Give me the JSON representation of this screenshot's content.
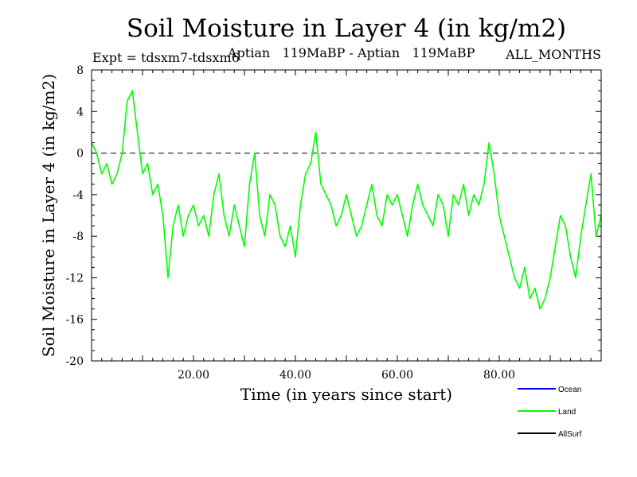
{
  "chart_data": {
    "type": "line",
    "title": "Soil Moisture in Layer 4 (in kg/m2)",
    "subtitle_left": "Expt = tdsxm7-tdsxm6",
    "subtitle_mid": "Aptian   119MaBP - Aptian   119MaBP",
    "subtitle_right": "ALL_MONTHS",
    "xlabel": "Time (in years since start)",
    "ylabel": "Soil Moisture in Layer 4 (in kg/m2)",
    "xlim": [
      0,
      100
    ],
    "ylim": [
      -20,
      8
    ],
    "x_ticks": [
      20,
      40,
      60,
      80
    ],
    "x_tick_labels": [
      "20.00",
      "40.00",
      "60.00",
      "80.00"
    ],
    "y_ticks": [
      8,
      4,
      0,
      -4,
      -8,
      -12,
      -16,
      -20
    ],
    "y_tick_labels": [
      "8",
      "4",
      "0",
      "-4",
      "-8",
      "-12",
      "-16",
      "-20"
    ],
    "reference_line": 0,
    "legend": [
      {
        "name": "Ocean",
        "color": "#0000ff"
      },
      {
        "name": "Land",
        "color": "#00ff00"
      },
      {
        "name": "AllSurf",
        "color": "#000000"
      }
    ],
    "series": [
      {
        "name": "Land",
        "color": "#00ff00",
        "x": [
          0,
          1,
          2,
          3,
          4,
          5,
          6,
          7,
          8,
          9,
          10,
          11,
          12,
          13,
          14,
          15,
          16,
          17,
          18,
          19,
          20,
          21,
          22,
          23,
          24,
          25,
          26,
          27,
          28,
          29,
          30,
          31,
          32,
          33,
          34,
          35,
          36,
          37,
          38,
          39,
          40,
          41,
          42,
          43,
          44,
          45,
          46,
          47,
          48,
          49,
          50,
          51,
          52,
          53,
          54,
          55,
          56,
          57,
          58,
          59,
          60,
          61,
          62,
          63,
          64,
          65,
          66,
          67,
          68,
          69,
          70,
          71,
          72,
          73,
          74,
          75,
          76,
          77,
          78,
          79,
          80,
          81,
          82,
          83,
          84,
          85,
          86,
          87,
          88,
          89,
          90,
          91,
          92,
          93,
          94,
          95,
          96,
          97,
          98,
          99,
          100
        ],
        "values": [
          1,
          0,
          -2,
          -1,
          -3,
          -2,
          0,
          5,
          6,
          2,
          -2,
          -1,
          -4,
          -3,
          -6,
          -12,
          -7,
          -5,
          -8,
          -6,
          -5,
          -7,
          -6,
          -8,
          -4,
          -2,
          -6,
          -8,
          -5,
          -7,
          -9,
          -3,
          0,
          -6,
          -8,
          -4,
          -5,
          -8,
          -9,
          -7,
          -10,
          -5,
          -2,
          -1,
          2,
          -3,
          -4,
          -5,
          -7,
          -6,
          -4,
          -6,
          -8,
          -7,
          -5,
          -3,
          -6,
          -7,
          -4,
          -5,
          -4,
          -6,
          -8,
          -5,
          -3,
          -5,
          -6,
          -7,
          -4,
          -5,
          -8,
          -4,
          -5,
          -3,
          -6,
          -4,
          -5,
          -3,
          1,
          -2,
          -6,
          -8,
          -10,
          -12,
          -13,
          -11,
          -14,
          -13,
          -15,
          -14,
          -12,
          -9,
          -6,
          -7,
          -10,
          -12,
          -8,
          -5,
          -2,
          -8,
          -6
        ]
      }
    ]
  }
}
